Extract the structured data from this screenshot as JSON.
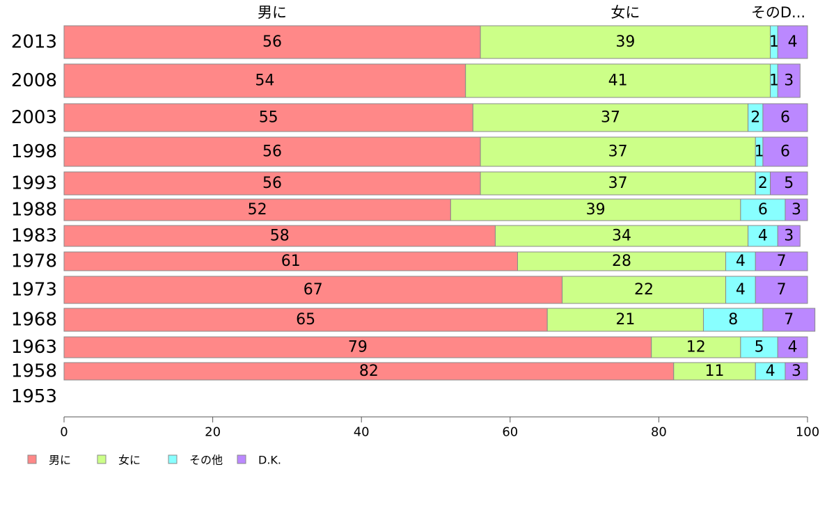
{
  "chart_data": {
    "type": "bar",
    "orientation": "horizontal",
    "stacked": true,
    "categories": [
      "2013",
      "2008",
      "2003",
      "1998",
      "1993",
      "1988",
      "1983",
      "1978",
      "1973",
      "1968",
      "1963",
      "1958",
      "1953"
    ],
    "series": [
      {
        "name": "男に",
        "color": "#ff8888",
        "values": [
          56,
          54,
          55,
          56,
          56,
          52,
          58,
          61,
          67,
          65,
          79,
          82,
          null
        ]
      },
      {
        "name": "女に",
        "color": "#ccff88",
        "values": [
          39,
          41,
          37,
          37,
          37,
          39,
          34,
          28,
          22,
          21,
          12,
          11,
          null
        ]
      },
      {
        "name": "その他",
        "color": "#88ffff",
        "values": [
          1,
          1,
          2,
          1,
          2,
          6,
          4,
          4,
          4,
          8,
          5,
          4,
          null
        ]
      },
      {
        "name": "D.K.",
        "color": "#bb88ff",
        "values": [
          4,
          3,
          6,
          6,
          5,
          3,
          3,
          7,
          7,
          7,
          4,
          3,
          null
        ]
      }
    ],
    "top_labels": [
      "男に",
      "女に",
      "そのD..."
    ],
    "xlim": [
      0,
      100
    ],
    "x_ticks": [
      0,
      20,
      40,
      60,
      80,
      100
    ],
    "grid": false,
    "legend_position": "bottom-left"
  }
}
